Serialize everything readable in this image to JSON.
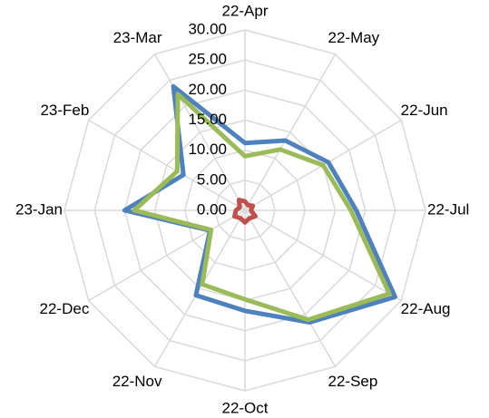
{
  "chart_data": {
    "type": "radar",
    "categories": [
      "22-Apr",
      "22-May",
      "22-Jun",
      "22-Jul",
      "22-Aug",
      "22-Sep",
      "22-Oct",
      "22-Nov",
      "22-Dec",
      "23-Jan",
      "23-Feb",
      "23-Mar"
    ],
    "series": [
      {
        "color": "#4f81bd",
        "values": [
          11.2,
          13.4,
          16,
          18.5,
          28.8,
          21.5,
          16.7,
          16.3,
          6.7,
          20,
          11.8,
          23.8
        ]
      },
      {
        "color": "#9bbb59",
        "values": [
          9,
          11.7,
          15,
          17.6,
          27.7,
          21,
          14.8,
          14.2,
          6.5,
          18.4,
          13,
          22.3
        ]
      },
      {
        "color": "#c0504d",
        "values": [
          1.5,
          1,
          1.5,
          1,
          2,
          1.5,
          2,
          1.5,
          2,
          1.5,
          1,
          2
        ]
      }
    ],
    "ylim": [
      0,
      30
    ],
    "yticks": [
      {
        "value": 0,
        "label": "0.00"
      },
      {
        "value": 5,
        "label": "5.00"
      },
      {
        "value": 10,
        "label": "10.00"
      },
      {
        "value": 15,
        "label": "15.00"
      },
      {
        "value": 20,
        "label": "20.00"
      },
      {
        "value": 25,
        "label": "25.00"
      },
      {
        "value": 30,
        "label": "30.00"
      }
    ],
    "grid": true
  }
}
